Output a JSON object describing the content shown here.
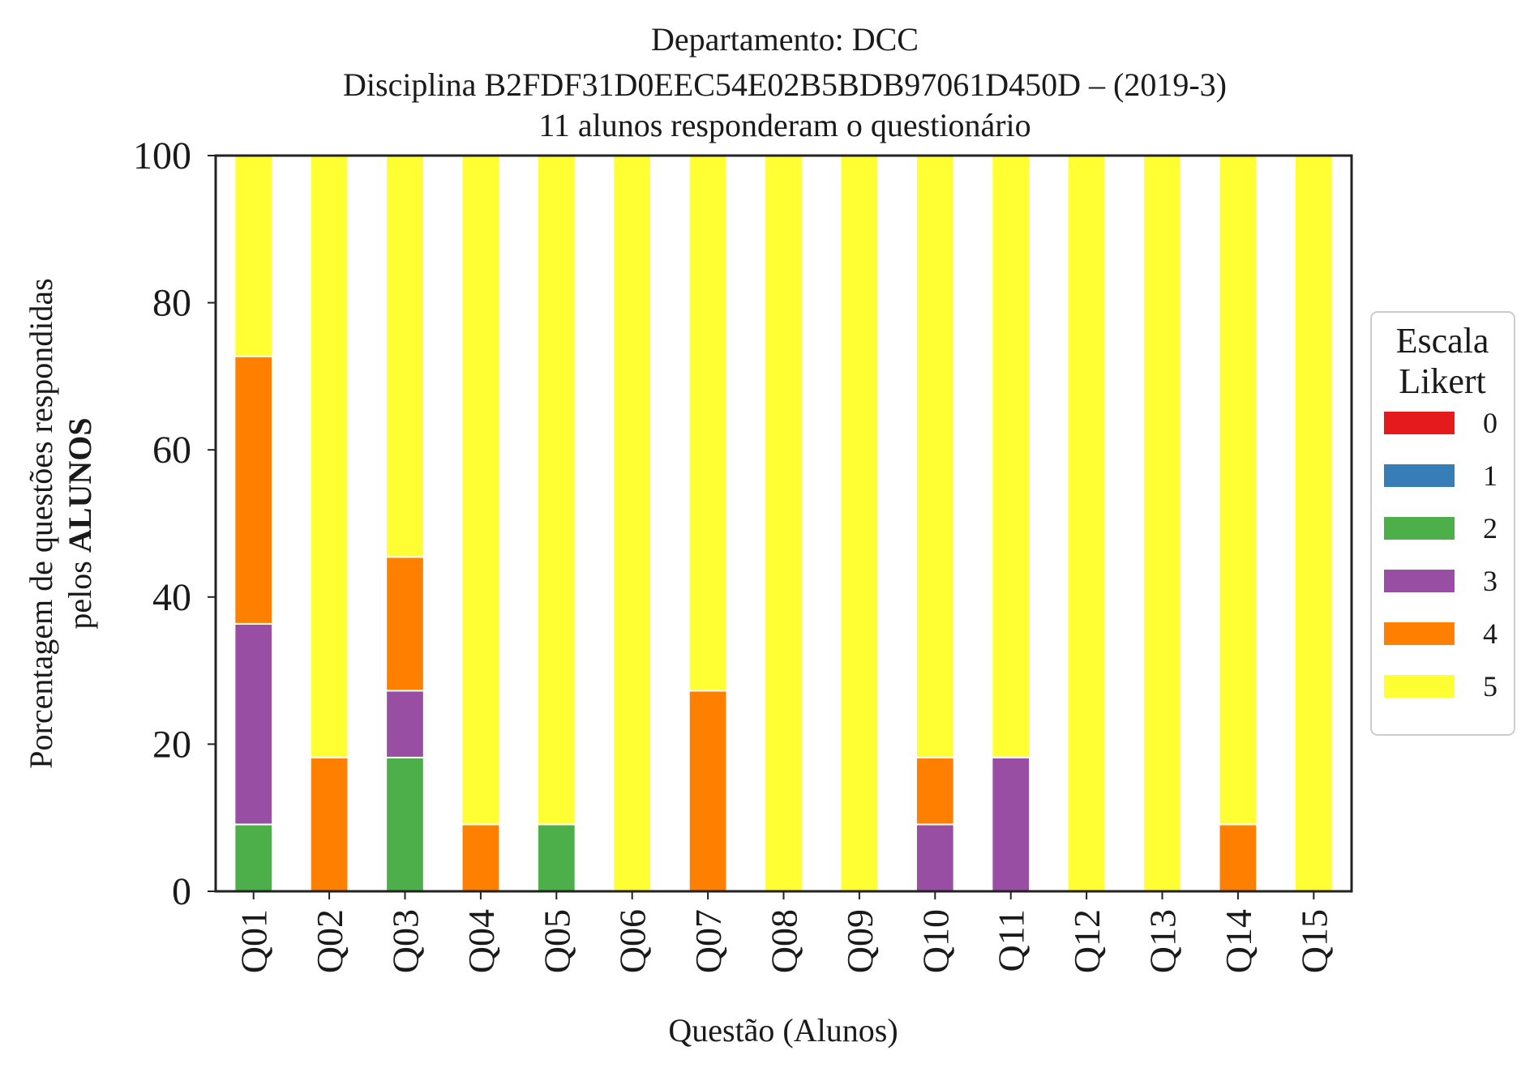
{
  "chart_data": {
    "type": "bar",
    "stacked": true,
    "title_lines": [
      "Departamento: DCC",
      "Disciplina B2FDF31D0EEC54E02B5BDB97061D450D – (2019-3)",
      "11 alunos responderam o questionário"
    ],
    "xlabel": "Questão (Alunos)",
    "ylabel_line1": "Porcentagem de questões respondidas",
    "ylabel_line2_prefix": "pelos ",
    "ylabel_line2_bold": "ALUNOS",
    "ylim": [
      0,
      100
    ],
    "yticks": [
      "0",
      "20",
      "40",
      "60",
      "80",
      "100"
    ],
    "grid": false,
    "legend": {
      "title_line1": "Escala",
      "title_line2": "Likert",
      "placement": "right"
    },
    "categories": [
      "Q01",
      "Q02",
      "Q03",
      "Q04",
      "Q05",
      "Q06",
      "Q07",
      "Q08",
      "Q09",
      "Q10",
      "Q11",
      "Q12",
      "Q13",
      "Q14",
      "Q15"
    ],
    "series": [
      {
        "name": "0",
        "color": "#e41a1c",
        "values": [
          0,
          0,
          0,
          0,
          0,
          0,
          0,
          0,
          0,
          0,
          0,
          0,
          0,
          0,
          0
        ]
      },
      {
        "name": "1",
        "color": "#377eb8",
        "values": [
          0,
          0,
          0,
          0,
          0,
          0,
          0,
          0,
          0,
          0,
          0,
          0,
          0,
          0,
          0
        ]
      },
      {
        "name": "2",
        "color": "#4daf4a",
        "values": [
          9.09,
          0,
          18.18,
          0,
          9.09,
          0,
          0,
          0,
          0,
          0,
          0,
          0,
          0,
          0,
          0
        ]
      },
      {
        "name": "3",
        "color": "#984ea3",
        "values": [
          27.27,
          0,
          9.09,
          0,
          0,
          0,
          0,
          0,
          0,
          9.09,
          18.18,
          0,
          0,
          0,
          0
        ]
      },
      {
        "name": "4",
        "color": "#ff7f00",
        "values": [
          36.36,
          18.18,
          18.18,
          9.09,
          0,
          0,
          27.27,
          0,
          0,
          9.09,
          0,
          0,
          0,
          9.09,
          0
        ]
      },
      {
        "name": "5",
        "color": "#ffff33",
        "values": [
          27.27,
          81.82,
          54.55,
          90.91,
          90.91,
          100,
          72.73,
          100,
          100,
          81.82,
          81.82,
          100,
          100,
          90.91,
          100
        ]
      }
    ]
  }
}
